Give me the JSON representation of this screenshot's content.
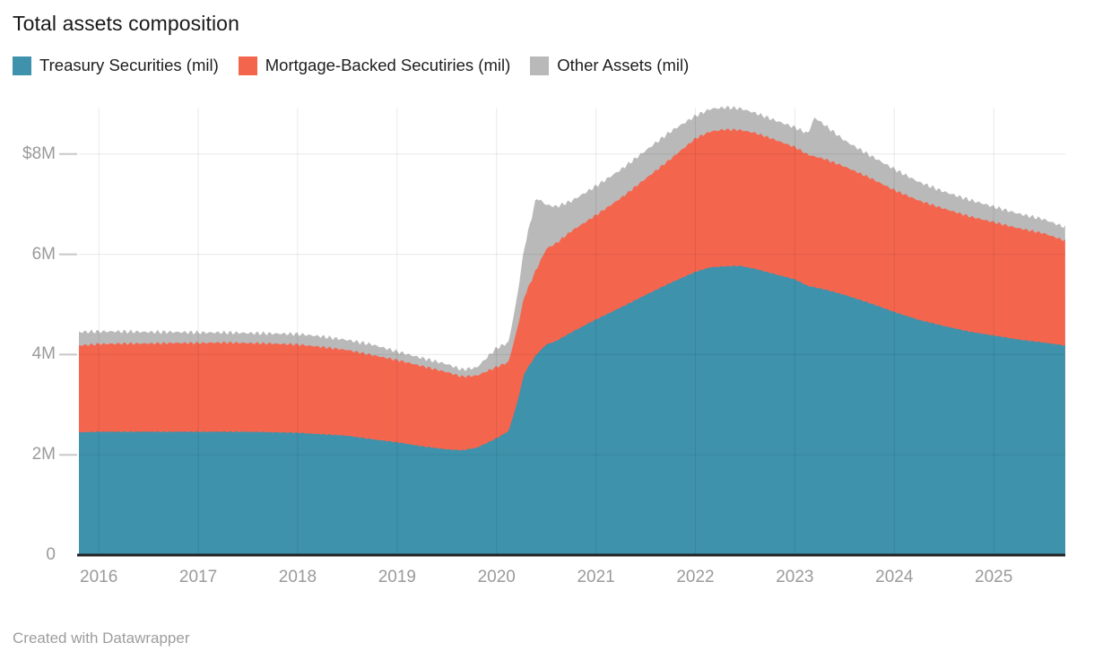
{
  "title": "Total assets composition",
  "footer": "Created with Datawrapper",
  "legend": {
    "items": [
      {
        "label": "Treasury Securities (mil)",
        "color": "#3e92ac"
      },
      {
        "label": "Mortgage-Backed Secutiries (mil)",
        "color": "#f4654e"
      },
      {
        "label": "Other Assets (mil)",
        "color": "#b9b9b9"
      }
    ]
  },
  "chart_data": {
    "type": "area",
    "stacked": true,
    "title": "Total assets composition",
    "xlabel": "",
    "ylabel": "",
    "unit": "$M",
    "grid": true,
    "legend_position": "top",
    "x_range": [
      2015.8,
      2025.72
    ],
    "ylim": [
      0,
      8.93
    ],
    "y_ticks": [
      {
        "label": "$8M",
        "value": 8
      },
      {
        "label": "6M",
        "value": 6
      },
      {
        "label": "4M",
        "value": 4
      },
      {
        "label": "2M",
        "value": 2
      },
      {
        "label": "0",
        "value": 0
      }
    ],
    "x_ticks": [
      {
        "label": "2016",
        "value": 2016
      },
      {
        "label": "2017",
        "value": 2017
      },
      {
        "label": "2018",
        "value": 2018
      },
      {
        "label": "2019",
        "value": 2019
      },
      {
        "label": "2020",
        "value": 2020
      },
      {
        "label": "2021",
        "value": 2021
      },
      {
        "label": "2022",
        "value": 2022
      },
      {
        "label": "2023",
        "value": 2023
      },
      {
        "label": "2024",
        "value": 2024
      },
      {
        "label": "2025",
        "value": 2025
      }
    ],
    "x": [
      2015.8,
      2016.0,
      2016.25,
      2016.5,
      2016.75,
      2017.0,
      2017.25,
      2017.5,
      2017.75,
      2018.0,
      2018.25,
      2018.5,
      2018.75,
      2019.0,
      2019.25,
      2019.5,
      2019.65,
      2019.8,
      2020.0,
      2020.12,
      2020.2,
      2020.28,
      2020.4,
      2020.5,
      2020.6,
      2020.75,
      2021.0,
      2021.25,
      2021.5,
      2021.75,
      2022.0,
      2022.15,
      2022.3,
      2022.45,
      2022.6,
      2022.75,
      2023.0,
      2023.13,
      2023.2,
      2023.3,
      2023.5,
      2023.75,
      2024.0,
      2024.25,
      2024.5,
      2024.75,
      2025.0,
      2025.25,
      2025.5,
      2025.72
    ],
    "series": [
      {
        "name": "Treasury Securities (mil)",
        "color": "#3e92ac",
        "values": [
          2.45,
          2.46,
          2.46,
          2.46,
          2.46,
          2.46,
          2.46,
          2.46,
          2.45,
          2.44,
          2.41,
          2.38,
          2.31,
          2.25,
          2.17,
          2.11,
          2.09,
          2.14,
          2.33,
          2.47,
          2.98,
          3.63,
          4.0,
          4.2,
          4.27,
          4.44,
          4.7,
          4.94,
          5.19,
          5.43,
          5.65,
          5.74,
          5.76,
          5.77,
          5.71,
          5.63,
          5.5,
          5.37,
          5.34,
          5.3,
          5.19,
          5.03,
          4.85,
          4.69,
          4.57,
          4.46,
          4.38,
          4.3,
          4.24,
          4.18
        ]
      },
      {
        "name": "Mortgage-Backed Secutiries (mil)",
        "color": "#f4654e",
        "values": [
          1.73,
          1.75,
          1.76,
          1.76,
          1.77,
          1.77,
          1.78,
          1.77,
          1.77,
          1.76,
          1.74,
          1.71,
          1.68,
          1.64,
          1.6,
          1.54,
          1.47,
          1.44,
          1.42,
          1.38,
          1.46,
          1.53,
          1.7,
          1.91,
          1.95,
          2.02,
          2.08,
          2.18,
          2.32,
          2.47,
          2.66,
          2.71,
          2.73,
          2.71,
          2.71,
          2.69,
          2.64,
          2.62,
          2.61,
          2.6,
          2.56,
          2.5,
          2.43,
          2.38,
          2.34,
          2.3,
          2.26,
          2.22,
          2.18,
          2.09
        ]
      },
      {
        "name": "Other Assets (mil)",
        "color": "#b9b9b9",
        "values": [
          0.27,
          0.25,
          0.24,
          0.23,
          0.22,
          0.21,
          0.2,
          0.2,
          0.2,
          0.21,
          0.21,
          0.2,
          0.21,
          0.17,
          0.16,
          0.16,
          0.14,
          0.16,
          0.38,
          0.39,
          0.62,
          0.98,
          1.43,
          0.88,
          0.73,
          0.6,
          0.58,
          0.57,
          0.56,
          0.55,
          0.45,
          0.45,
          0.44,
          0.43,
          0.4,
          0.39,
          0.39,
          0.42,
          0.78,
          0.68,
          0.52,
          0.45,
          0.42,
          0.37,
          0.34,
          0.33,
          0.31,
          0.29,
          0.28,
          0.27
        ]
      }
    ]
  }
}
